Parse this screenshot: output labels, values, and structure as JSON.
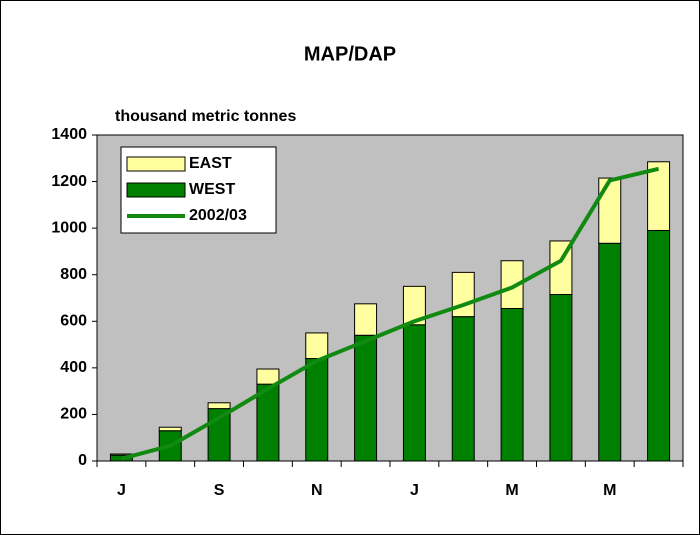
{
  "chart_data": {
    "type": "bar",
    "stacked": true,
    "title": "MAP/DAP",
    "y_label": "thousand metric tonnes",
    "categories": [
      "J",
      null,
      "S",
      null,
      "N",
      null,
      "J",
      null,
      "M",
      null,
      "M",
      null
    ],
    "series": [
      {
        "name": "WEST",
        "type": "bar",
        "color": "#008000",
        "values": [
          25,
          130,
          225,
          330,
          440,
          540,
          585,
          620,
          655,
          715,
          935,
          990
        ]
      },
      {
        "name": "EAST",
        "type": "bar",
        "color": "#ffffa0",
        "values": [
          5,
          15,
          25,
          65,
          110,
          135,
          165,
          190,
          205,
          230,
          280,
          295
        ]
      },
      {
        "name": "2002/03",
        "type": "line",
        "color": "#108a10",
        "values": [
          10,
          65,
          185,
          310,
          430,
          515,
          600,
          670,
          745,
          860,
          1205,
          1255
        ]
      }
    ],
    "legend_order": [
      1,
      0,
      2
    ],
    "legend": "upper left",
    "ylim": [
      0,
      1400
    ],
    "yticks": [
      0,
      200,
      400,
      600,
      800,
      1000,
      1200,
      1400
    ],
    "plot_background": "#c0c0c0"
  }
}
